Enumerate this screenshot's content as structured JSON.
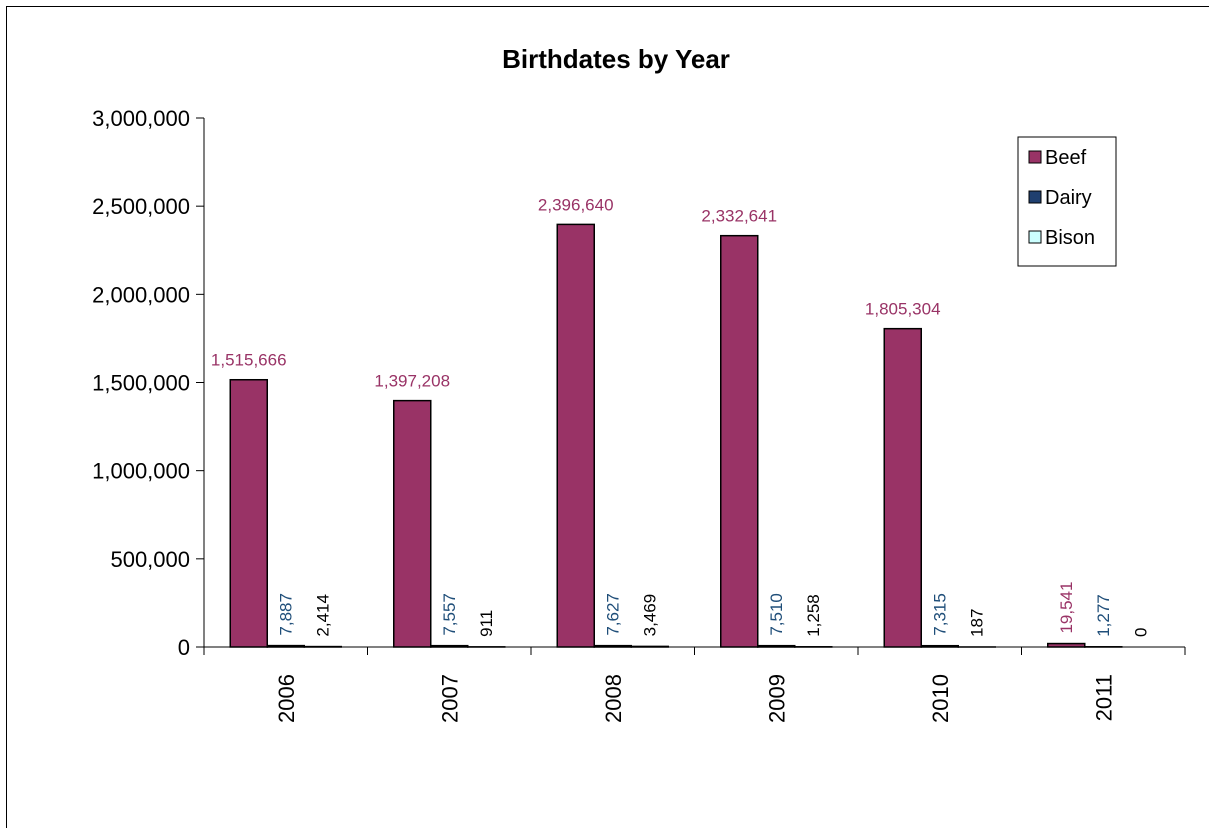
{
  "chart_data": {
    "type": "bar",
    "title": "Birthdates by Year",
    "xlabel": "",
    "ylabel": "",
    "categories": [
      "2006",
      "2007",
      "2008",
      "2009",
      "2010",
      "2011"
    ],
    "series": [
      {
        "name": "Beef",
        "color": "#993366",
        "values": [
          1515666,
          1397208,
          2396640,
          2332641,
          1805304,
          19541
        ],
        "labels": [
          "1,515,666",
          "1,397,208",
          "2,396,640",
          "2,332,641",
          "1,805,304",
          "19,541"
        ]
      },
      {
        "name": "Dairy",
        "color": "#1F3F6F",
        "values": [
          7887,
          7557,
          7627,
          7510,
          7315,
          1277
        ],
        "labels": [
          "7,887",
          "7,557",
          "7,627",
          "7,510",
          "7,315",
          "1,277"
        ]
      },
      {
        "name": "Bison",
        "color": "#CCFFFF",
        "values": [
          2414,
          911,
          3469,
          1258,
          187,
          0
        ],
        "labels": [
          "2,414",
          "911",
          "3,469",
          "1,258",
          "187",
          "0"
        ]
      }
    ],
    "ylim": [
      0,
      3000000
    ],
    "yticks": [
      "0",
      "500,000",
      "1,000,000",
      "1,500,000",
      "2,000,000",
      "2,500,000",
      "3,000,000"
    ],
    "grid": false,
    "legend_position": "top-right"
  }
}
